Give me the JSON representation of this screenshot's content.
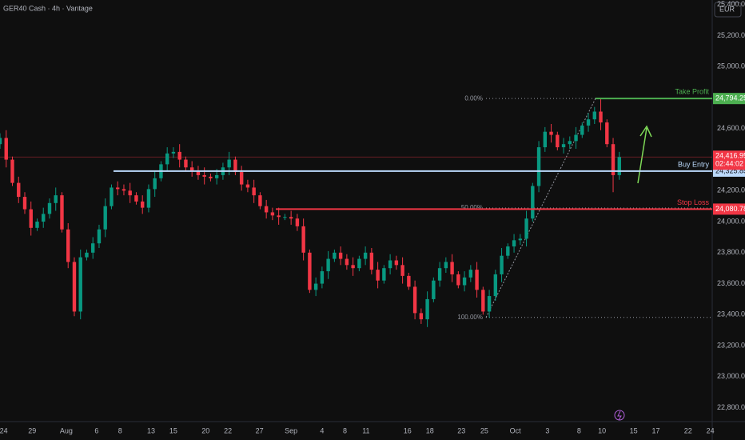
{
  "chart_data": {
    "type": "candlestick",
    "title": "GER40 Cash · 4h · Vantage",
    "currency": "EUR",
    "open": [
      24500,
      24540,
      24400,
      24250,
      24160,
      24080,
      23960,
      24000,
      24050,
      24120,
      24170,
      23950,
      23740,
      23420,
      23770,
      23800,
      23860,
      23950,
      24100,
      24220,
      24210,
      24200,
      24170,
      24130,
      24090,
      24210,
      24280,
      24370,
      24440,
      24450,
      24400,
      24350,
      24330,
      24300,
      24290,
      24280,
      24300,
      24350,
      24400,
      24320,
      24240,
      24220,
      24170,
      24100,
      24060,
      24040,
      24030,
      24030,
      24020,
      23970,
      23800,
      23560,
      23600,
      23680,
      23760,
      23800,
      23760,
      23720,
      23700,
      23760,
      23800,
      23690,
      23620,
      23700,
      23750,
      23720,
      23650,
      23580,
      23410,
      23370,
      23500,
      23620,
      23700,
      23740,
      23660,
      23590,
      23640,
      23690,
      23560,
      23420,
      23520,
      23660,
      23780,
      23840,
      23880,
      23890,
      24020,
      24230,
      24480,
      24580,
      24560,
      24480,
      24500,
      24520,
      24560,
      24620,
      24660,
      24710,
      24640,
      24500,
      24300
    ],
    "high": [
      24570,
      24590,
      24420,
      24290,
      24190,
      24130,
      24020,
      24090,
      24150,
      24220,
      24190,
      23990,
      23770,
      23820,
      23820,
      23900,
      23980,
      24150,
      24240,
      24260,
      24240,
      24250,
      24190,
      24170,
      24240,
      24330,
      24390,
      24480,
      24480,
      24500,
      24420,
      24390,
      24360,
      24350,
      24310,
      24340,
      24380,
      24450,
      24420,
      24360,
      24270,
      24270,
      24190,
      24140,
      24090,
      24090,
      24050,
      24070,
      24050,
      24020,
      23820,
      23640,
      23710,
      23810,
      23820,
      23840,
      23790,
      23770,
      23780,
      23840,
      23830,
      23740,
      23720,
      23790,
      23780,
      23770,
      23670,
      23620,
      23440,
      23550,
      23640,
      23740,
      23770,
      23790,
      23680,
      23680,
      23720,
      23740,
      23580,
      23560,
      23690,
      23830,
      23860,
      23920,
      23920,
      24070,
      24250,
      24520,
      24610,
      24630,
      24580,
      24540,
      24550,
      24610,
      24640,
      24700,
      24740,
      24790,
      24660,
      24540,
      24450
    ],
    "low": [
      24470,
      24350,
      24230,
      24120,
      24050,
      23910,
      23940,
      23960,
      24020,
      24070,
      23930,
      23700,
      23390,
      23370,
      23750,
      23760,
      23830,
      23900,
      24080,
      24170,
      24170,
      24120,
      24110,
      24050,
      24060,
      24160,
      24260,
      24330,
      24410,
      24350,
      24330,
      24290,
      24270,
      24240,
      24260,
      24240,
      24270,
      24300,
      24300,
      24200,
      24190,
      24120,
      24080,
      24020,
      24010,
      23980,
      24010,
      23980,
      23940,
      23750,
      23540,
      23520,
      23570,
      23630,
      23740,
      23720,
      23690,
      23650,
      23680,
      23720,
      23660,
      23570,
      23600,
      23660,
      23690,
      23600,
      23560,
      23370,
      23340,
      23320,
      23480,
      23580,
      23670,
      23610,
      23570,
      23550,
      23610,
      23510,
      23400,
      23380,
      23490,
      23610,
      23760,
      23800,
      23850,
      23840,
      24000,
      24190,
      24450,
      24510,
      24460,
      24440,
      24470,
      24470,
      24540,
      24580,
      24630,
      24590,
      24480,
      24190,
      24270
    ],
    "close": [
      24540,
      24400,
      24250,
      24160,
      24080,
      23960,
      24000,
      24050,
      24120,
      24170,
      23950,
      23740,
      23420,
      23770,
      23800,
      23860,
      23950,
      24100,
      24220,
      24210,
      24200,
      24170,
      24130,
      24090,
      24210,
      24280,
      24370,
      24440,
      24450,
      24400,
      24350,
      24330,
      24300,
      24290,
      24280,
      24300,
      24350,
      24400,
      24320,
      24240,
      24220,
      24170,
      24100,
      24060,
      24040,
      24030,
      24030,
      24020,
      23970,
      23800,
      23560,
      23600,
      23680,
      23760,
      23800,
      23760,
      23720,
      23700,
      23760,
      23800,
      23690,
      23620,
      23700,
      23750,
      23720,
      23650,
      23580,
      23410,
      23370,
      23500,
      23620,
      23700,
      23740,
      23660,
      23590,
      23640,
      23690,
      23560,
      23420,
      23520,
      23660,
      23780,
      23840,
      23880,
      23890,
      24020,
      24230,
      24480,
      24580,
      24560,
      24480,
      24500,
      24520,
      24560,
      24620,
      24660,
      24710,
      24640,
      24500,
      24300,
      24416.95
    ],
    "up_color": "#089981",
    "down_color": "#f23645",
    "xlim": [
      0,
      115
    ],
    "xticks": [
      {
        "value": 0.6,
        "label": "24"
      },
      {
        "value": 5.2,
        "label": "29"
      },
      {
        "value": 10.7,
        "label": "Aug"
      },
      {
        "value": 15.6,
        "label": "6"
      },
      {
        "value": 19.4,
        "label": "8"
      },
      {
        "value": 24.4,
        "label": "13"
      },
      {
        "value": 28,
        "label": "15"
      },
      {
        "value": 33.2,
        "label": "20"
      },
      {
        "value": 36.8,
        "label": "22"
      },
      {
        "value": 41.9,
        "label": "27"
      },
      {
        "value": 47,
        "label": "Sep"
      },
      {
        "value": 52,
        "label": "4"
      },
      {
        "value": 55.7,
        "label": "8"
      },
      {
        "value": 59.1,
        "label": "11"
      },
      {
        "value": 65.8,
        "label": "16"
      },
      {
        "value": 69.4,
        "label": "18"
      },
      {
        "value": 74.5,
        "label": "23"
      },
      {
        "value": 78.2,
        "label": "25"
      },
      {
        "value": 83.2,
        "label": "Oct"
      },
      {
        "value": 88.4,
        "label": "3"
      },
      {
        "value": 93.5,
        "label": "8"
      },
      {
        "value": 97.2,
        "label": "10"
      },
      {
        "value": 102.3,
        "label": "15"
      },
      {
        "value": 105.9,
        "label": "17"
      },
      {
        "value": 111.1,
        "label": "22"
      },
      {
        "value": 114.7,
        "label": "24"
      }
    ],
    "ylim": [
      22710,
      25430
    ],
    "yticks": [
      {
        "value": 25400,
        "label": "25,400.00"
      },
      {
        "value": 25200,
        "label": "25,200.00"
      },
      {
        "value": 25000,
        "label": "25,000.00"
      },
      {
        "value": 24800,
        "label": "24,800.00"
      },
      {
        "value": 24600,
        "label": "24,600.00"
      },
      {
        "value": 24400,
        "label": "24,400.00"
      },
      {
        "value": 24200,
        "label": "24,200.00"
      },
      {
        "value": 24000,
        "label": "24,000.00"
      },
      {
        "value": 23800,
        "label": "23,800.00"
      },
      {
        "value": 23600,
        "label": "23,600.00"
      },
      {
        "value": 23400,
        "label": "23,400.00"
      },
      {
        "value": 23200,
        "label": "23,200.00"
      },
      {
        "value": 23000,
        "label": "23,000.00"
      },
      {
        "value": 22800,
        "label": "22,800.00"
      }
    ],
    "levels": [
      {
        "name": "Take Profit",
        "value": 24794.25,
        "label": "24,794.25",
        "color": "#4caf50"
      },
      {
        "name": "Buy Entry",
        "value": 24325.85,
        "label": "24,325.85",
        "color": "#bbd9fb"
      },
      {
        "name": "Stop Loss",
        "value": 24080.78,
        "label": "24,080.78",
        "color": "#f23645"
      }
    ],
    "fib": [
      {
        "label": "0.00%",
        "value": 24794.25
      },
      {
        "label": "50.00%",
        "value": 24088
      },
      {
        "label": "100.00%",
        "value": 23382
      }
    ],
    "last_price": 24416.95,
    "last_price_label": "24,416.95",
    "countdown": "02:44:02"
  }
}
